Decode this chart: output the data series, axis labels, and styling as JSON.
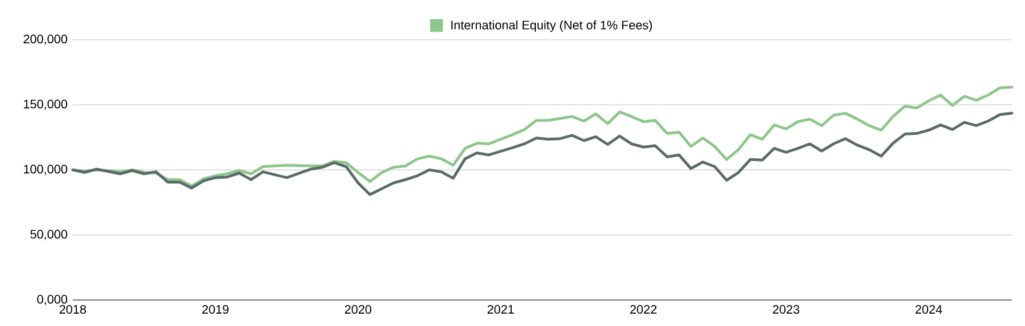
{
  "chart_data": {
    "type": "line",
    "x": [
      "2018-01",
      "2018-02",
      "2018-03",
      "2018-05",
      "2018-06",
      "2018-07",
      "2018-08",
      "2018-09",
      "2018-10",
      "2018-11",
      "2018-12",
      "2019-01",
      "2019-02",
      "2019-03",
      "2019-04",
      "2019-05",
      "2019-07",
      "2019-09",
      "2019-10",
      "2019-11",
      "2019-12",
      "2020-01",
      "2020-02",
      "2020-03",
      "2020-04",
      "2020-05",
      "2020-06",
      "2020-07",
      "2020-08",
      "2020-09",
      "2020-10",
      "2020-11",
      "2020-12",
      "2021-02",
      "2021-03",
      "2021-04",
      "2021-05",
      "2021-06",
      "2021-07",
      "2021-08",
      "2021-09",
      "2021-10",
      "2021-11",
      "2021-12",
      "2022-01",
      "2022-02",
      "2022-03",
      "2022-04",
      "2022-05",
      "2022-06",
      "2022-07",
      "2022-08",
      "2022-09",
      "2022-10",
      "2022-11",
      "2022-12",
      "2023-01",
      "2023-02",
      "2023-03",
      "2023-04",
      "2023-05",
      "2023-06",
      "2023-07",
      "2023-08",
      "2023-09",
      "2023-10",
      "2023-11",
      "2023-12",
      "2024-01",
      "2024-02",
      "2024-03",
      "2024-04",
      "2024-05",
      "2024-06",
      "2024-07",
      "2024-08"
    ],
    "series": [
      {
        "name": "International Equity (Net of 1% Fees)",
        "color": "#8dc68a",
        "values": [
          100000,
          99000,
          100000,
          98500,
          100000,
          98000,
          97500,
          92500,
          92500,
          87500,
          93000,
          95500,
          97000,
          99500,
          97000,
          102500,
          103500,
          103000,
          103000,
          106500,
          105500,
          98000,
          91000,
          98000,
          102000,
          103000,
          108500,
          110500,
          108500,
          103500,
          116500,
          120500,
          120000,
          127000,
          131000,
          138000,
          138000,
          139500,
          141000,
          137500,
          143000,
          135500,
          144500,
          141000,
          137000,
          138000,
          128000,
          129000,
          118000,
          124500,
          118000,
          108000,
          115500,
          127000,
          123500,
          134500,
          131500,
          137000,
          139000,
          134000,
          142000,
          143500,
          139000,
          134000,
          130500,
          141000,
          149000,
          147500,
          153000,
          157500,
          149500,
          156500,
          153500,
          157500,
          163000,
          163500
        ]
      },
      {
        "color": "#5a6a6a",
        "values": [
          100000,
          98000,
          100500,
          97000,
          99500,
          97000,
          98500,
          90500,
          90500,
          86000,
          91500,
          94000,
          94500,
          97500,
          92500,
          98500,
          94000,
          100500,
          102000,
          105500,
          102500,
          90000,
          81000,
          85500,
          90000,
          92500,
          95500,
          100000,
          98500,
          93500,
          108500,
          113000,
          111500,
          117000,
          120000,
          124500,
          123500,
          124000,
          126500,
          122500,
          125500,
          119500,
          126000,
          120000,
          117500,
          118500,
          110000,
          111500,
          101000,
          106000,
          102500,
          92000,
          98000,
          108000,
          107500,
          116500,
          113500,
          116500,
          120000,
          114500,
          120000,
          124000,
          119000,
          115500,
          110500,
          120500,
          127500,
          128000,
          130500,
          134500,
          131000,
          136500,
          134000,
          137500,
          142500,
          143500
        ]
      }
    ],
    "xlim": [
      "2018-01",
      "2024-08"
    ],
    "xticks": [
      "2018",
      "2019",
      "2020",
      "2021",
      "2022",
      "2023",
      "2024"
    ],
    "ylim": [
      0,
      200000
    ],
    "yticks": [
      {
        "value": 0,
        "label": "0,000"
      },
      {
        "value": 50000,
        "label": "50,000"
      },
      {
        "value": 100000,
        "label": "100,000"
      },
      {
        "value": 150000,
        "label": "150,000"
      },
      {
        "value": 200000,
        "label": "200,000"
      }
    ],
    "grid": "y",
    "legend": "top",
    "line_style": "solid"
  }
}
